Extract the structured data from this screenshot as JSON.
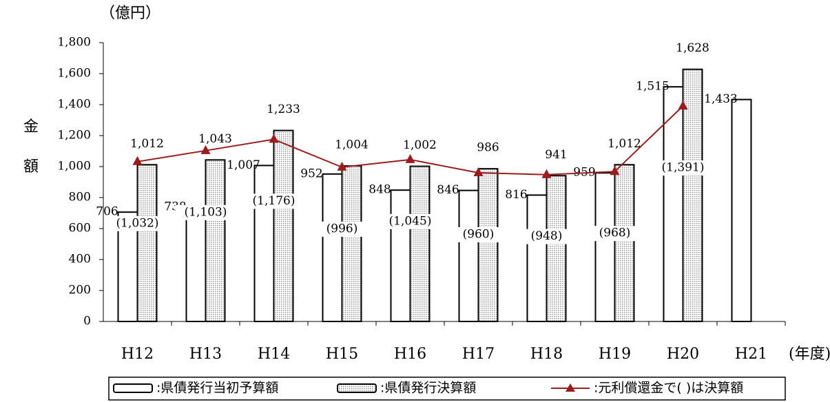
{
  "chart_data": {
    "type": "bar",
    "unit_label": "（億円）",
    "y_axis_label": "金額",
    "x_unit_label": "(年度)",
    "categories": [
      "H12",
      "H13",
      "H14",
      "H15",
      "H16",
      "H17",
      "H18",
      "H19",
      "H20",
      "H21"
    ],
    "ylim": [
      0,
      1800
    ],
    "yticks": [
      0,
      200,
      400,
      600,
      800,
      {
        "value": 1000,
        "label": "1,000"
      },
      {
        "value": 1200,
        "label": "1,200"
      },
      {
        "value": 1400,
        "label": "1,400"
      },
      {
        "value": 1600,
        "label": "1,600"
      },
      {
        "value": 1800,
        "label": "1,800"
      }
    ],
    "series": [
      {
        "name": ":県債発行当初予算額",
        "color": "#ffffff",
        "values": [
          706,
          738,
          1007,
          952,
          848,
          846,
          816,
          959,
          1515,
          1433
        ],
        "value_labels": [
          "706",
          "738",
          "1,007",
          "952",
          "848",
          "846",
          "816",
          "959",
          "1,515",
          "1,433"
        ]
      },
      {
        "name": ":県債発行決算額",
        "color": "#9a9a9a",
        "values": [
          1012,
          1043,
          1233,
          1004,
          1002,
          986,
          941,
          1012,
          1628,
          null
        ],
        "value_labels": [
          "1,012",
          "1,043",
          "1,233",
          "1,004",
          "1,002",
          "986",
          "941",
          "1,012",
          "1,628",
          null
        ]
      },
      {
        "name": ":元利償還金で( )は決算額",
        "color": "#9b1c1c",
        "type": "line",
        "values": [
          1032,
          1103,
          1176,
          996,
          1045,
          960,
          948,
          968,
          1391,
          null
        ],
        "value_labels": [
          "(1,032)",
          "(1,103)",
          "(1,176)",
          "(996)",
          "(1,045)",
          "(960)",
          "(948)",
          "(968)",
          "(1,391)",
          null
        ]
      }
    ]
  }
}
